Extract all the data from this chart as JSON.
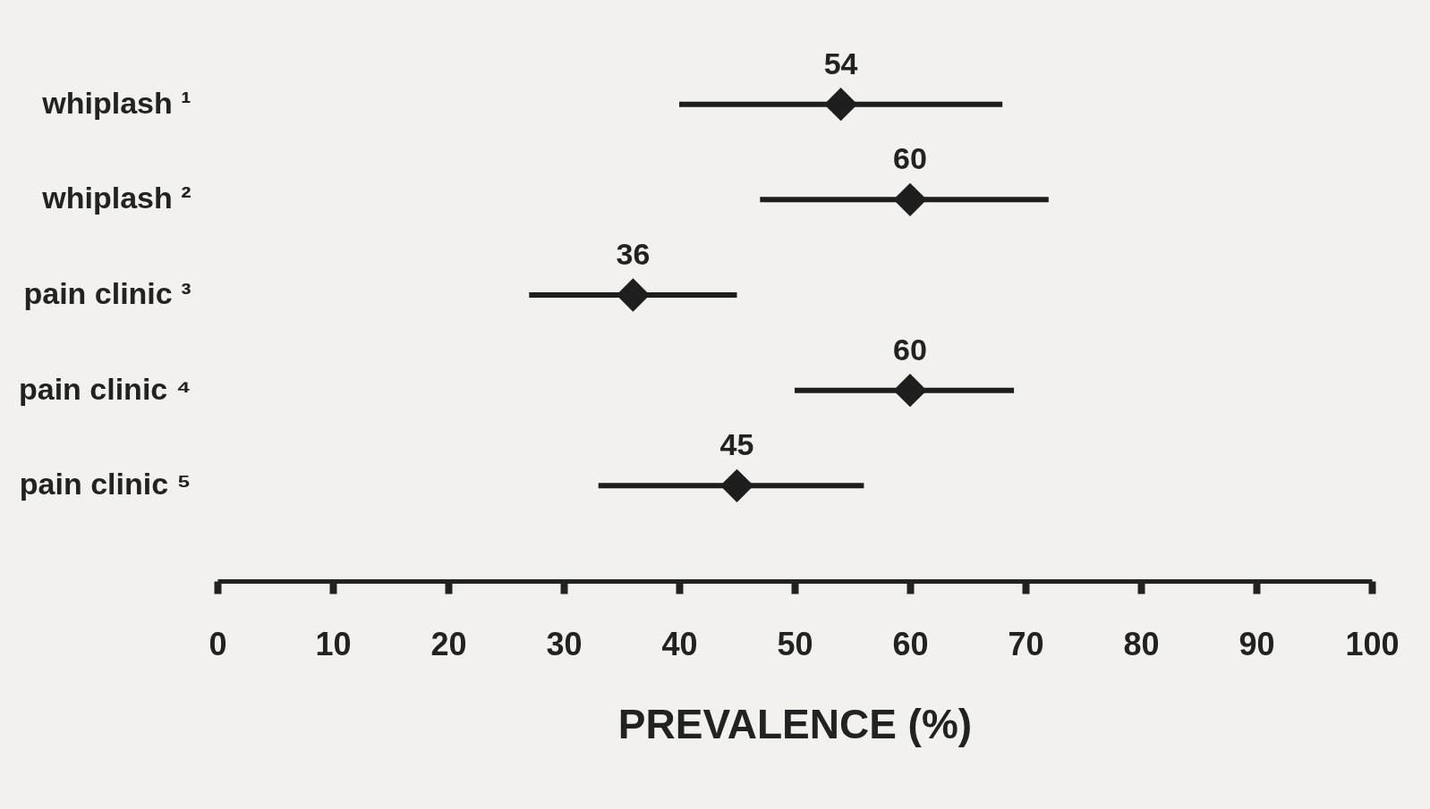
{
  "chart_data": {
    "type": "scatter",
    "orientation": "horizontal",
    "marker": "diamond",
    "categories": [
      "whiplash ¹",
      "whiplash ²",
      "pain clinic ³",
      "pain clinic ⁴",
      "pain clinic ⁵"
    ],
    "values": [
      54,
      60,
      36,
      60,
      45
    ],
    "errors": [
      [
        40,
        68
      ],
      [
        47,
        72
      ],
      [
        27,
        45
      ],
      [
        50,
        69
      ],
      [
        33,
        56
      ]
    ],
    "color": "#1e1e1e",
    "data_labels": true,
    "xlabel": "PREVALENCE (%)",
    "xlim": [
      0,
      100
    ],
    "xticks": [
      0,
      10,
      20,
      30,
      40,
      50,
      60,
      70,
      80,
      90,
      100
    ],
    "grid": false
  }
}
